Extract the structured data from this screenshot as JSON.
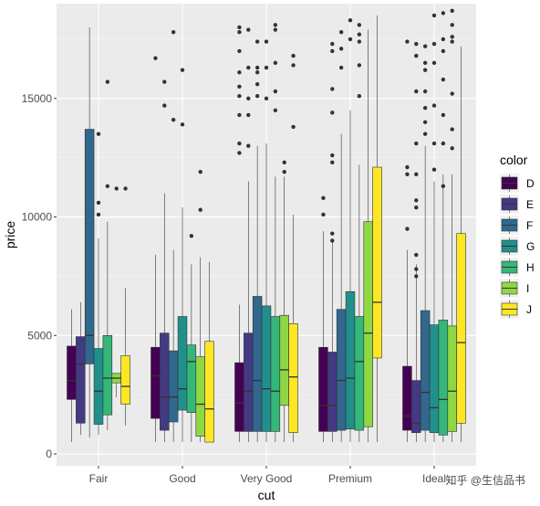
{
  "chart_data": {
    "type": "boxplot",
    "xlabel": "cut",
    "ylabel": "price",
    "ylim": [
      -500,
      19000
    ],
    "yticks": [
      0,
      5000,
      10000,
      15000
    ],
    "ytick_labels": [
      "0",
      "5000",
      "10000",
      "15000"
    ],
    "categories": [
      "Fair",
      "Good",
      "Very Good",
      "Premium",
      "Ideal"
    ],
    "legend": {
      "title": "color",
      "position": "right"
    },
    "grid": true,
    "colors": {
      "D": "#440154",
      "E": "#443A83",
      "F": "#31688E",
      "G": "#21908C",
      "H": "#35B779",
      "I": "#8FD744",
      "J": "#FDE725"
    },
    "series": [
      {
        "name": "D",
        "boxes": [
          {
            "whisker_low": 500,
            "q1": 2300,
            "median": 3100,
            "q3": 4550,
            "whisker_high": 6100,
            "outliers": []
          },
          {
            "whisker_low": 500,
            "q1": 1500,
            "median": 3300,
            "q3": 4500,
            "whisker_high": 8400,
            "outliers": [
              16700
            ]
          },
          {
            "whisker_low": 500,
            "q1": 950,
            "median": 2150,
            "q3": 3850,
            "whisker_high": 6300,
            "outliers": [
              18000,
              17800,
              17000,
              16100,
              15500,
              15100,
              14300,
              13100,
              12700
            ]
          },
          {
            "whisker_low": 500,
            "q1": 950,
            "median": 2050,
            "q3": 4500,
            "whisker_high": 9400,
            "outliers": [
              10800,
              10100
            ]
          },
          {
            "whisker_low": 500,
            "q1": 1000,
            "median": 1600,
            "q3": 3700,
            "whisker_high": 8600,
            "outliers": [
              17400,
              12100,
              11800,
              9500
            ]
          }
        ]
      },
      {
        "name": "E",
        "boxes": [
          {
            "whisker_low": 800,
            "q1": 1300,
            "median": 3800,
            "q3": 4950,
            "whisker_high": 6400,
            "outliers": []
          },
          {
            "whisker_low": 500,
            "q1": 1000,
            "median": 2400,
            "q3": 5100,
            "whisker_high": 11000,
            "outliers": [
              15700,
              14700
            ]
          },
          {
            "whisker_low": 500,
            "q1": 950,
            "median": 2650,
            "q3": 5100,
            "whisker_high": 11500,
            "outliers": [
              17900,
              16300,
              15000,
              14300,
              13000
            ]
          },
          {
            "whisker_low": 500,
            "q1": 950,
            "median": 2050,
            "q3": 4300,
            "whisker_high": 9000,
            "outliers": [
              17300,
              17000,
              15400,
              14400,
              12600,
              12300,
              9300,
              9000
            ]
          },
          {
            "whisker_low": 500,
            "q1": 900,
            "median": 1300,
            "q3": 3100,
            "whisker_high": 8000,
            "outliers": [
              17300,
              16800,
              15300,
              13100,
              11800,
              10700,
              10400,
              8400,
              7800,
              7500
            ]
          }
        ]
      },
      {
        "name": "F",
        "boxes": [
          {
            "whisker_low": 700,
            "q1": 3800,
            "median": 5000,
            "q3": 13700,
            "whisker_high": 18000,
            "outliers": []
          },
          {
            "whisker_low": 500,
            "q1": 1350,
            "median": 2400,
            "q3": 4350,
            "whisker_high": 8600,
            "outliers": [
              17800,
              14100
            ]
          },
          {
            "whisker_low": 500,
            "q1": 950,
            "median": 3100,
            "q3": 6650,
            "whisker_high": 13000,
            "outliers": [
              17400,
              16300,
              16100,
              15600,
              15100
            ]
          },
          {
            "whisker_low": 500,
            "q1": 1000,
            "median": 3100,
            "q3": 6100,
            "whisker_high": 13500,
            "outliers": [
              17800,
              17100,
              16300
            ]
          },
          {
            "whisker_low": 500,
            "q1": 1000,
            "median": 2600,
            "q3": 6050,
            "whisker_high": 13000,
            "outliers": [
              17200,
              16500,
              16200,
              15300,
              14600,
              14000,
              13500
            ]
          }
        ]
      },
      {
        "name": "G",
        "boxes": [
          {
            "whisker_low": 800,
            "q1": 1250,
            "median": 2650,
            "q3": 4450,
            "whisker_high": 9100,
            "outliers": [
              13500,
              10600,
              10100
            ]
          },
          {
            "whisker_low": 500,
            "q1": 1850,
            "median": 2750,
            "q3": 5800,
            "whisker_high": 10400,
            "outliers": [
              13900,
              16200
            ]
          },
          {
            "whisker_low": 500,
            "q1": 950,
            "median": 2750,
            "q3": 6250,
            "whisker_high": 13100,
            "outliers": [
              17400,
              16300,
              15000
            ]
          },
          {
            "whisker_low": 500,
            "q1": 1050,
            "median": 3200,
            "q3": 6850,
            "whisker_high": 14500,
            "outliers": [
              18300,
              17500
            ]
          },
          {
            "whisker_low": 500,
            "q1": 900,
            "median": 1950,
            "q3": 5450,
            "whisker_high": 11500,
            "outliers": [
              18500,
              17300,
              16500,
              14700,
              13100,
              12000
            ]
          }
        ]
      },
      {
        "name": "H",
        "boxes": [
          {
            "whisker_low": 1000,
            "q1": 1650,
            "median": 3200,
            "q3": 5000,
            "whisker_high": 9800,
            "outliers": [
              15700,
              11300
            ]
          },
          {
            "whisker_low": 500,
            "q1": 1750,
            "median": 3900,
            "q3": 4600,
            "whisker_high": 8000,
            "outliers": [
              9200
            ]
          },
          {
            "whisker_low": 500,
            "q1": 950,
            "median": 2650,
            "q3": 5800,
            "whisker_high": 11700,
            "outliers": [
              18100,
              17900,
              16500,
              15300,
              14500
            ]
          },
          {
            "whisker_low": 500,
            "q1": 1000,
            "median": 3900,
            "q3": 5800,
            "whisker_high": 12200,
            "outliers": [
              18100,
              17700,
              17400,
              16400,
              15100
            ]
          },
          {
            "whisker_low": 500,
            "q1": 800,
            "median": 2300,
            "q3": 5650,
            "whisker_high": 11800,
            "outliers": [
              18600,
              17500,
              17000,
              15800,
              14300,
              13100,
              11300
            ]
          }
        ]
      },
      {
        "name": "I",
        "boxes": [
          {
            "whisker_low": 2400,
            "q1": 3000,
            "median": 3200,
            "q3": 3400,
            "whisker_high": 3400,
            "outliers": [
              11200
            ]
          },
          {
            "whisker_low": 500,
            "q1": 750,
            "median": 2100,
            "q3": 4100,
            "whisker_high": 8300,
            "outliers": [
              11900,
              10300
            ]
          },
          {
            "whisker_low": 500,
            "q1": 2050,
            "median": 3550,
            "q3": 5850,
            "whisker_high": 11700,
            "outliers": [
              12300,
              11900
            ]
          },
          {
            "whisker_low": 500,
            "q1": 1150,
            "median": 5100,
            "q3": 9800,
            "whisker_high": 17900,
            "outliers": []
          },
          {
            "whisker_low": 500,
            "q1": 950,
            "median": 2650,
            "q3": 5400,
            "whisker_high": 11800,
            "outliers": [
              18700,
              18100,
              17600,
              17400,
              15200,
              13700,
              12900
            ]
          }
        ]
      },
      {
        "name": "J",
        "boxes": [
          {
            "whisker_low": 1200,
            "q1": 2100,
            "median": 2850,
            "q3": 4150,
            "whisker_high": 7000,
            "outliers": [
              11200
            ]
          },
          {
            "whisker_low": 500,
            "q1": 500,
            "median": 1900,
            "q3": 4750,
            "whisker_high": 8100,
            "outliers": []
          },
          {
            "whisker_low": 500,
            "q1": 900,
            "median": 3250,
            "q3": 5500,
            "whisker_high": 10100,
            "outliers": [
              16800,
              16400,
              13800
            ]
          },
          {
            "whisker_low": 500,
            "q1": 4050,
            "median": 6400,
            "q3": 12100,
            "whisker_high": 18500,
            "outliers": []
          },
          {
            "whisker_low": 500,
            "q1": 1300,
            "median": 4700,
            "q3": 9300,
            "whisker_high": 17200,
            "outliers": []
          }
        ]
      }
    ]
  },
  "watermark": "知乎 @生信品书"
}
